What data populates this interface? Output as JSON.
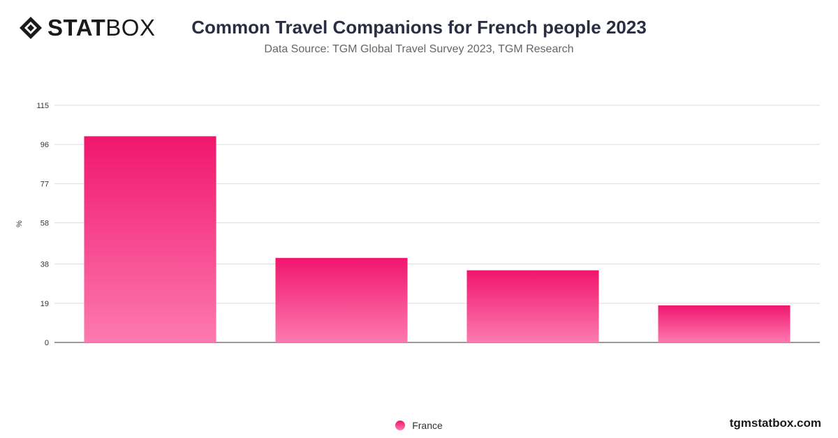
{
  "brand": {
    "logo_strong": "STAT",
    "logo_light": "BOX",
    "logo_icon": "diamond-cube-icon",
    "site": "tgmstatbox.com"
  },
  "chart_data": {
    "type": "bar",
    "title": "Common Travel Companions for French people 2023",
    "subtitle": "Data Source: TGM Global Travel Survey 2023, TGM Research",
    "xlabel": "",
    "ylabel": "%",
    "ylim": [
      0,
      115
    ],
    "yticks": [
      "0",
      "19",
      "38",
      "58",
      "77",
      "96",
      "115"
    ],
    "grid": true,
    "legend_position": "bottom",
    "categories": [
      "",
      "",
      "",
      ""
    ],
    "series": [
      {
        "name": "France",
        "values": [
          100,
          41,
          35,
          18
        ]
      }
    ],
    "colors": {
      "bar_top": "#f0166d",
      "bar_bottom": "#fd7ab0"
    }
  }
}
